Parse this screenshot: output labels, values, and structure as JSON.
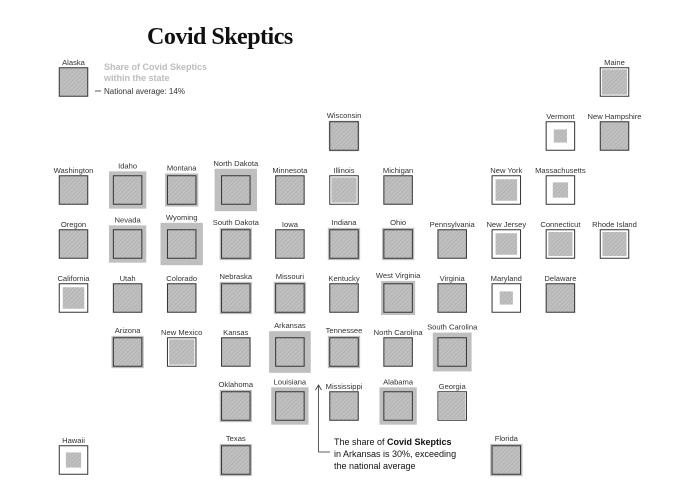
{
  "chart_data": {
    "type": "tile-map",
    "title": "Covid Skeptics",
    "legend": {
      "line1": "Share of Covid Skeptics",
      "line2": "within the state",
      "national_label": "National average: 14%"
    },
    "national_average": 14,
    "annotation": {
      "line1_pre": "The share of ",
      "line1_bold": "Covid Skeptics",
      "line2": "in Arkansas is 30%, exceeding",
      "line3": "the national average"
    },
    "states": [
      {
        "name": "Alaska",
        "col": 0,
        "row": 0,
        "value": 14
      },
      {
        "name": "Maine",
        "col": 10,
        "row": 0,
        "value": 11
      },
      {
        "name": "Wisconsin",
        "col": 5,
        "row": 1,
        "value": 16
      },
      {
        "name": "Vermont",
        "col": 9,
        "row": 1,
        "value": 3
      },
      {
        "name": "New Hampshire",
        "col": 10,
        "row": 1,
        "value": 14
      },
      {
        "name": "Washington",
        "col": 0,
        "row": 2,
        "value": 14
      },
      {
        "name": "Idaho",
        "col": 1,
        "row": 2,
        "value": 24
      },
      {
        "name": "Montana",
        "col": 2,
        "row": 2,
        "value": 19
      },
      {
        "name": "North Dakota",
        "col": 3,
        "row": 2,
        "value": 31
      },
      {
        "name": "Minnesota",
        "col": 4,
        "row": 2,
        "value": 14
      },
      {
        "name": "Illinois",
        "col": 5,
        "row": 2,
        "value": 11
      },
      {
        "name": "Michigan",
        "col": 6,
        "row": 2,
        "value": 14
      },
      {
        "name": "New York",
        "col": 8,
        "row": 2,
        "value": 8
      },
      {
        "name": "Massachusetts",
        "col": 9,
        "row": 2,
        "value": 4
      },
      {
        "name": "Oregon",
        "col": 0,
        "row": 3,
        "value": 14
      },
      {
        "name": "Nevada",
        "col": 1,
        "row": 3,
        "value": 24
      },
      {
        "name": "Wyoming",
        "col": 2,
        "row": 3,
        "value": 31
      },
      {
        "name": "South Dakota",
        "col": 3,
        "row": 3,
        "value": 18
      },
      {
        "name": "Iowa",
        "col": 4,
        "row": 3,
        "value": 14
      },
      {
        "name": "Indiana",
        "col": 5,
        "row": 3,
        "value": 18
      },
      {
        "name": "Ohio",
        "col": 6,
        "row": 3,
        "value": 18
      },
      {
        "name": "Pennsylvania",
        "col": 7,
        "row": 3,
        "value": 14
      },
      {
        "name": "New Jersey",
        "col": 8,
        "row": 3,
        "value": 8
      },
      {
        "name": "Connecticut",
        "col": 9,
        "row": 3,
        "value": 10
      },
      {
        "name": "Rhode Island",
        "col": 10,
        "row": 3,
        "value": 10
      },
      {
        "name": "California",
        "col": 0,
        "row": 4,
        "value": 8
      },
      {
        "name": "Utah",
        "col": 1,
        "row": 4,
        "value": 14
      },
      {
        "name": "Colorado",
        "col": 2,
        "row": 4,
        "value": 14
      },
      {
        "name": "Nebraska",
        "col": 3,
        "row": 4,
        "value": 18
      },
      {
        "name": "Missouri",
        "col": 4,
        "row": 4,
        "value": 18
      },
      {
        "name": "Kentucky",
        "col": 5,
        "row": 4,
        "value": 14
      },
      {
        "name": "West Virginia",
        "col": 6,
        "row": 4,
        "value": 20
      },
      {
        "name": "Virginia",
        "col": 7,
        "row": 4,
        "value": 14
      },
      {
        "name": "Maryland",
        "col": 8,
        "row": 4,
        "value": 3
      },
      {
        "name": "Delaware",
        "col": 9,
        "row": 4,
        "value": 14
      },
      {
        "name": "Arizona",
        "col": 1,
        "row": 5,
        "value": 18
      },
      {
        "name": "New Mexico",
        "col": 2,
        "row": 5,
        "value": 11
      },
      {
        "name": "Kansas",
        "col": 3,
        "row": 5,
        "value": 14
      },
      {
        "name": "Arkansas",
        "col": 4,
        "row": 5,
        "value": 30
      },
      {
        "name": "Tennessee",
        "col": 5,
        "row": 5,
        "value": 18
      },
      {
        "name": "North Carolina",
        "col": 6,
        "row": 5,
        "value": 14
      },
      {
        "name": "South Carolina",
        "col": 7,
        "row": 5,
        "value": 26
      },
      {
        "name": "Oklahoma",
        "col": 3,
        "row": 6,
        "value": 18
      },
      {
        "name": "Louisiana",
        "col": 4,
        "row": 6,
        "value": 24
      },
      {
        "name": "Mississippi",
        "col": 5,
        "row": 6,
        "value": 14
      },
      {
        "name": "Alabama",
        "col": 6,
        "row": 6,
        "value": 24
      },
      {
        "name": "Georgia",
        "col": 7,
        "row": 6,
        "value": 12
      },
      {
        "name": "Hawaii",
        "col": 0,
        "row": 7,
        "value": 4
      },
      {
        "name": "Texas",
        "col": 3,
        "row": 7,
        "value": 18
      },
      {
        "name": "Florida",
        "col": 8,
        "row": 7,
        "value": 18
      }
    ]
  },
  "colors": {
    "fill": "#bfbfbf",
    "hatch": "#aaaaaa",
    "outline": "#333333",
    "text": "#333333",
    "legend_title": "#bdbdbd"
  }
}
